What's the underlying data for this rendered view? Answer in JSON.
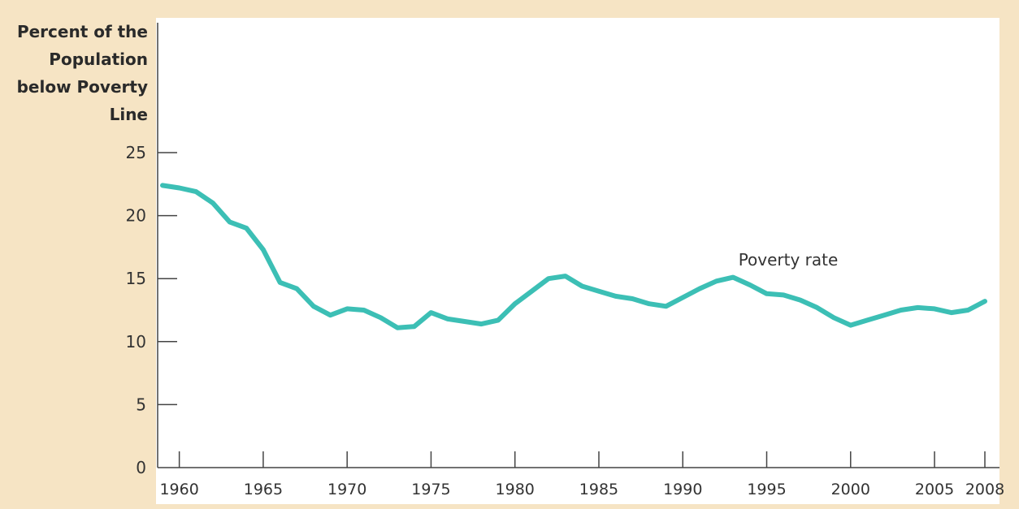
{
  "chart_data": {
    "type": "line",
    "ylabel_lines": [
      "Percent of the",
      "Population",
      "below Poverty",
      "Line"
    ],
    "xlabel": "",
    "title": "",
    "ylim": [
      0,
      25
    ],
    "yticks": [
      0,
      5,
      10,
      15,
      20,
      25
    ],
    "xlim": [
      1959,
      2008
    ],
    "xticks": [
      1960,
      1965,
      1970,
      1975,
      1980,
      1985,
      1990,
      1995,
      2000,
      2005,
      2008
    ],
    "grid": false,
    "colors": {
      "line": "#3cbfb5",
      "axis": "#444444",
      "panel_bg": "#ffffff",
      "page_bg": "#f6e4c4"
    },
    "series": [
      {
        "name": "Poverty rate",
        "x": [
          1959,
          1960,
          1961,
          1962,
          1963,
          1964,
          1965,
          1966,
          1967,
          1968,
          1969,
          1970,
          1971,
          1972,
          1973,
          1974,
          1975,
          1976,
          1977,
          1978,
          1979,
          1980,
          1981,
          1982,
          1983,
          1984,
          1985,
          1986,
          1987,
          1988,
          1989,
          1990,
          1991,
          1992,
          1993,
          1994,
          1995,
          1996,
          1997,
          1998,
          1999,
          2000,
          2001,
          2002,
          2003,
          2004,
          2005,
          2006,
          2007,
          2008
        ],
        "values": [
          22.4,
          22.2,
          21.9,
          21.0,
          19.5,
          19.0,
          17.3,
          14.7,
          14.2,
          12.8,
          12.1,
          12.6,
          12.5,
          11.9,
          11.1,
          11.2,
          12.3,
          11.8,
          11.6,
          11.4,
          11.7,
          13.0,
          14.0,
          15.0,
          15.2,
          14.4,
          14.0,
          13.6,
          13.4,
          13.0,
          12.8,
          13.5,
          14.2,
          14.8,
          15.1,
          14.5,
          13.8,
          13.7,
          13.3,
          12.7,
          11.9,
          11.3,
          11.7,
          12.1,
          12.5,
          12.7,
          12.6,
          12.3,
          12.5,
          13.2
        ],
        "label": "Poverty rate"
      }
    ]
  }
}
